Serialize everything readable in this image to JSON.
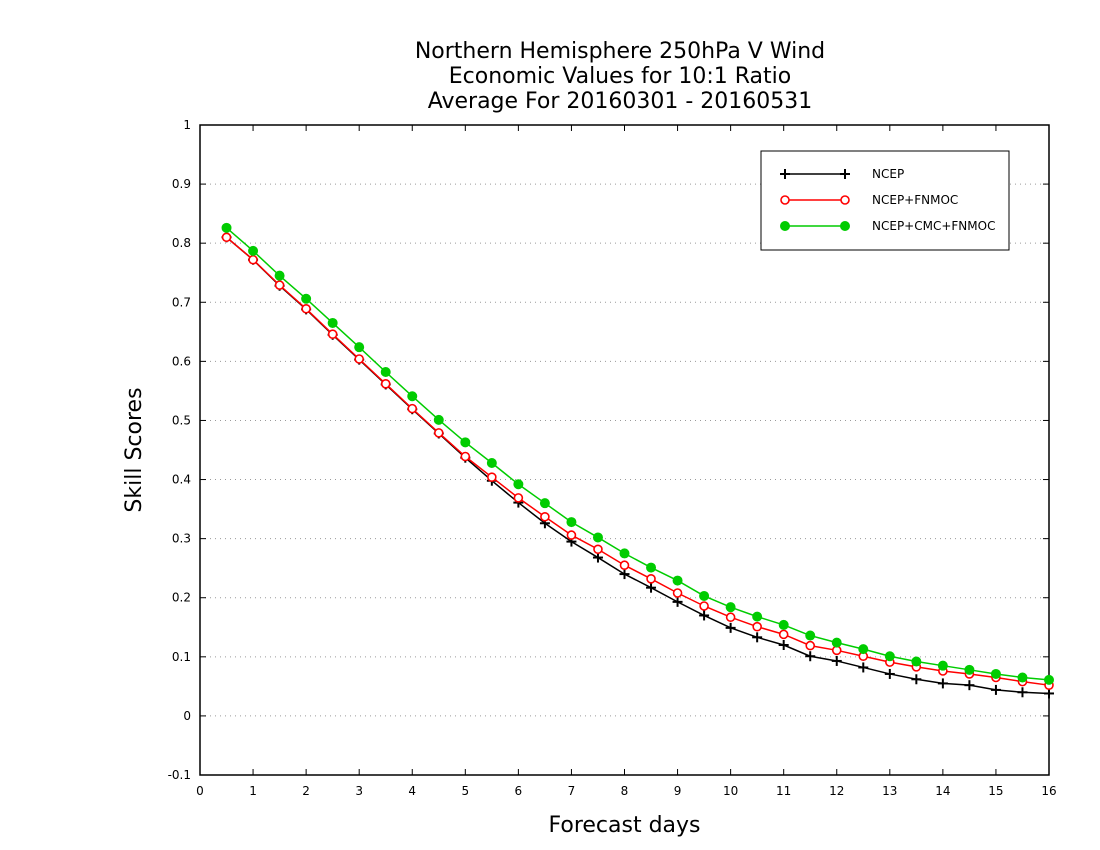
{
  "chart_data": {
    "type": "line",
    "title": [
      "Northern Hemisphere 250hPa V Wind",
      "Economic Values for 10:1 Ratio",
      "Average For 20160301 - 20160531"
    ],
    "xlabel": "Forecast days",
    "ylabel": "Skill Scores",
    "xlim": [
      0,
      16
    ],
    "ylim": [
      -0.1,
      1
    ],
    "xticks": [
      "0",
      "1",
      "2",
      "3",
      "4",
      "5",
      "6",
      "7",
      "8",
      "9",
      "10",
      "11",
      "12",
      "13",
      "14",
      "15",
      "16"
    ],
    "yticks": [
      "-0.1",
      "0",
      "0.1",
      "0.2",
      "0.3",
      "0.4",
      "0.5",
      "0.6",
      "0.7",
      "0.8",
      "0.9",
      "1"
    ],
    "grid": true,
    "legend_position": "top-right",
    "x": [
      0.5,
      1,
      1.5,
      2,
      2.5,
      3,
      3.5,
      4,
      4.5,
      5,
      5.5,
      6,
      6.5,
      7,
      7.5,
      8,
      8.5,
      9,
      9.5,
      10,
      10.5,
      11,
      11.5,
      12,
      12.5,
      13,
      13.5,
      14,
      14.5,
      15,
      15.5,
      16
    ],
    "series": [
      {
        "name": "NCEP",
        "color": "#000000",
        "marker": "plus",
        "values": [
          0.81,
          0.772,
          0.728,
          0.688,
          0.645,
          0.603,
          0.561,
          0.519,
          0.478,
          0.437,
          0.398,
          0.361,
          0.326,
          0.295,
          0.268,
          0.24,
          0.217,
          0.193,
          0.17,
          0.149,
          0.133,
          0.12,
          0.101,
          0.093,
          0.082,
          0.071,
          0.062,
          0.055,
          0.052,
          0.044,
          0.04,
          0.038
        ]
      },
      {
        "name": "NCEP+FNMOC",
        "color": "#ff0000",
        "marker": "open-circle",
        "values": [
          0.81,
          0.772,
          0.729,
          0.689,
          0.646,
          0.604,
          0.562,
          0.52,
          0.479,
          0.439,
          0.404,
          0.369,
          0.337,
          0.306,
          0.282,
          0.255,
          0.232,
          0.208,
          0.186,
          0.167,
          0.151,
          0.138,
          0.119,
          0.111,
          0.101,
          0.091,
          0.083,
          0.076,
          0.071,
          0.065,
          0.058,
          0.052
        ]
      },
      {
        "name": "NCEP+CMC+FNMOC",
        "color": "#00cc00",
        "marker": "filled-circle",
        "values": [
          0.826,
          0.787,
          0.745,
          0.706,
          0.665,
          0.624,
          0.582,
          0.541,
          0.501,
          0.463,
          0.428,
          0.392,
          0.36,
          0.328,
          0.302,
          0.275,
          0.251,
          0.229,
          0.203,
          0.184,
          0.168,
          0.154,
          0.136,
          0.124,
          0.113,
          0.101,
          0.092,
          0.085,
          0.078,
          0.071,
          0.065,
          0.061
        ]
      }
    ]
  }
}
